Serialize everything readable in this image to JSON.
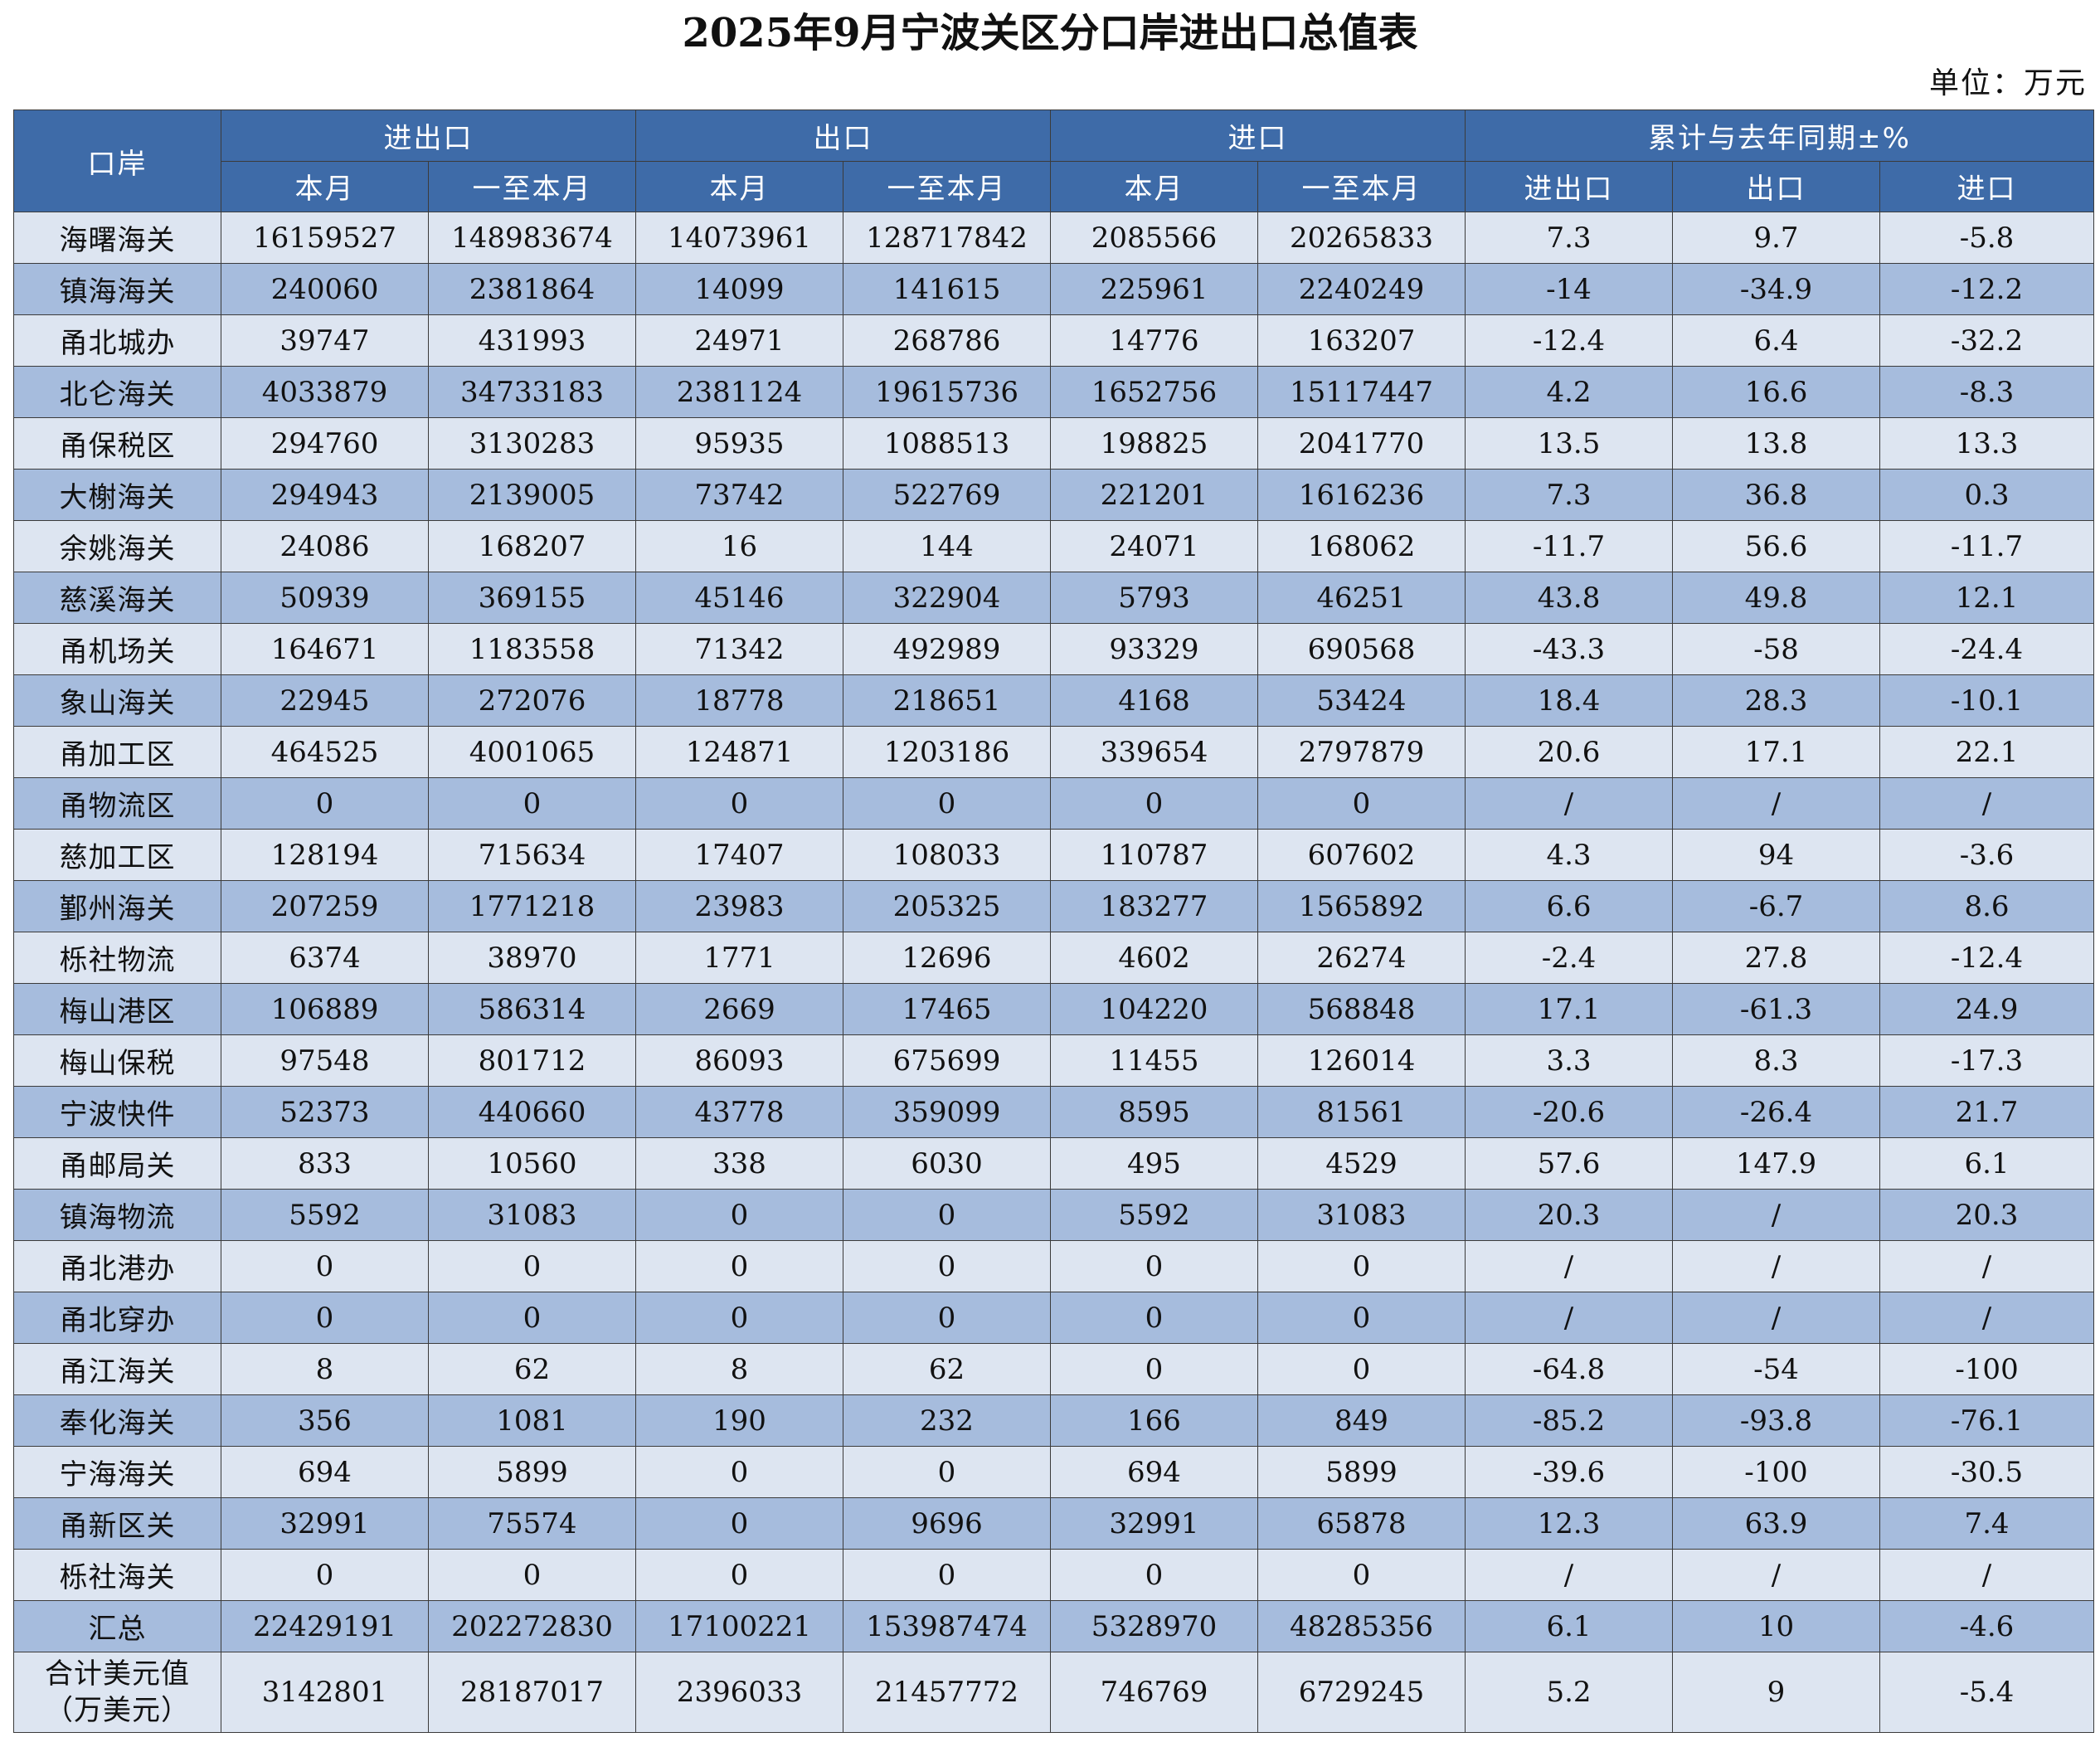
{
  "title": "2025年9月宁波关区分口岸进出口总值表",
  "unit": "单位：万元",
  "header": {
    "port": "口岸",
    "groups": [
      "进出口",
      "出口",
      "进口",
      "累计与去年同期±%"
    ],
    "sub": [
      "本月",
      "一至本月",
      "本月",
      "一至本月",
      "本月",
      "一至本月",
      "进出口",
      "出口",
      "进口"
    ]
  },
  "rows": [
    [
      "海曙海关",
      "16159527",
      "148983674",
      "14073961",
      "128717842",
      "2085566",
      "20265833",
      "7.3",
      "9.7",
      "-5.8"
    ],
    [
      "镇海海关",
      "240060",
      "2381864",
      "14099",
      "141615",
      "225961",
      "2240249",
      "-14",
      "-34.9",
      "-12.2"
    ],
    [
      "甬北城办",
      "39747",
      "431993",
      "24971",
      "268786",
      "14776",
      "163207",
      "-12.4",
      "6.4",
      "-32.2"
    ],
    [
      "北仑海关",
      "4033879",
      "34733183",
      "2381124",
      "19615736",
      "1652756",
      "15117447",
      "4.2",
      "16.6",
      "-8.3"
    ],
    [
      "甬保税区",
      "294760",
      "3130283",
      "95935",
      "1088513",
      "198825",
      "2041770",
      "13.5",
      "13.8",
      "13.3"
    ],
    [
      "大榭海关",
      "294943",
      "2139005",
      "73742",
      "522769",
      "221201",
      "1616236",
      "7.3",
      "36.8",
      "0.3"
    ],
    [
      "余姚海关",
      "24086",
      "168207",
      "16",
      "144",
      "24071",
      "168062",
      "-11.7",
      "56.6",
      "-11.7"
    ],
    [
      "慈溪海关",
      "50939",
      "369155",
      "45146",
      "322904",
      "5793",
      "46251",
      "43.8",
      "49.8",
      "12.1"
    ],
    [
      "甬机场关",
      "164671",
      "1183558",
      "71342",
      "492989",
      "93329",
      "690568",
      "-43.3",
      "-58",
      "-24.4"
    ],
    [
      "象山海关",
      "22945",
      "272076",
      "18778",
      "218651",
      "4168",
      "53424",
      "18.4",
      "28.3",
      "-10.1"
    ],
    [
      "甬加工区",
      "464525",
      "4001065",
      "124871",
      "1203186",
      "339654",
      "2797879",
      "20.6",
      "17.1",
      "22.1"
    ],
    [
      "甬物流区",
      "0",
      "0",
      "0",
      "0",
      "0",
      "0",
      "/",
      "/",
      "/"
    ],
    [
      "慈加工区",
      "128194",
      "715634",
      "17407",
      "108033",
      "110787",
      "607602",
      "4.3",
      "94",
      "-3.6"
    ],
    [
      "鄞州海关",
      "207259",
      "1771218",
      "23983",
      "205325",
      "183277",
      "1565892",
      "6.6",
      "-6.7",
      "8.6"
    ],
    [
      "栎社物流",
      "6374",
      "38970",
      "1771",
      "12696",
      "4602",
      "26274",
      "-2.4",
      "27.8",
      "-12.4"
    ],
    [
      "梅山港区",
      "106889",
      "586314",
      "2669",
      "17465",
      "104220",
      "568848",
      "17.1",
      "-61.3",
      "24.9"
    ],
    [
      "梅山保税",
      "97548",
      "801712",
      "86093",
      "675699",
      "11455",
      "126014",
      "3.3",
      "8.3",
      "-17.3"
    ],
    [
      "宁波快件",
      "52373",
      "440660",
      "43778",
      "359099",
      "8595",
      "81561",
      "-20.6",
      "-26.4",
      "21.7"
    ],
    [
      "甬邮局关",
      "833",
      "10560",
      "338",
      "6030",
      "495",
      "4529",
      "57.6",
      "147.9",
      "6.1"
    ],
    [
      "镇海物流",
      "5592",
      "31083",
      "0",
      "0",
      "5592",
      "31083",
      "20.3",
      "/",
      "20.3"
    ],
    [
      "甬北港办",
      "0",
      "0",
      "0",
      "0",
      "0",
      "0",
      "/",
      "/",
      "/"
    ],
    [
      "甬北穿办",
      "0",
      "0",
      "0",
      "0",
      "0",
      "0",
      "/",
      "/",
      "/"
    ],
    [
      "甬江海关",
      "8",
      "62",
      "8",
      "62",
      "0",
      "0",
      "-64.8",
      "-54",
      "-100"
    ],
    [
      "奉化海关",
      "356",
      "1081",
      "190",
      "232",
      "166",
      "849",
      "-85.2",
      "-93.8",
      "-76.1"
    ],
    [
      "宁海海关",
      "694",
      "5899",
      "0",
      "0",
      "694",
      "5899",
      "-39.6",
      "-100",
      "-30.5"
    ],
    [
      "甬新区关",
      "32991",
      "75574",
      "0",
      "9696",
      "32991",
      "65878",
      "12.3",
      "63.9",
      "7.4"
    ],
    [
      "栎社海关",
      "0",
      "0",
      "0",
      "0",
      "0",
      "0",
      "/",
      "/",
      "/"
    ]
  ],
  "total": [
    "汇总",
    "22429191",
    "202272830",
    "17100221",
    "153987474",
    "5328970",
    "48285356",
    "6.1",
    "10",
    "-4.6"
  ],
  "usd": {
    "label_line1": "合计美元值",
    "label_line2": "（万美元）",
    "values": [
      "3142801",
      "28187017",
      "2396033",
      "21457772",
      "746769",
      "6729245",
      "5.2",
      "9",
      "-5.4"
    ]
  }
}
